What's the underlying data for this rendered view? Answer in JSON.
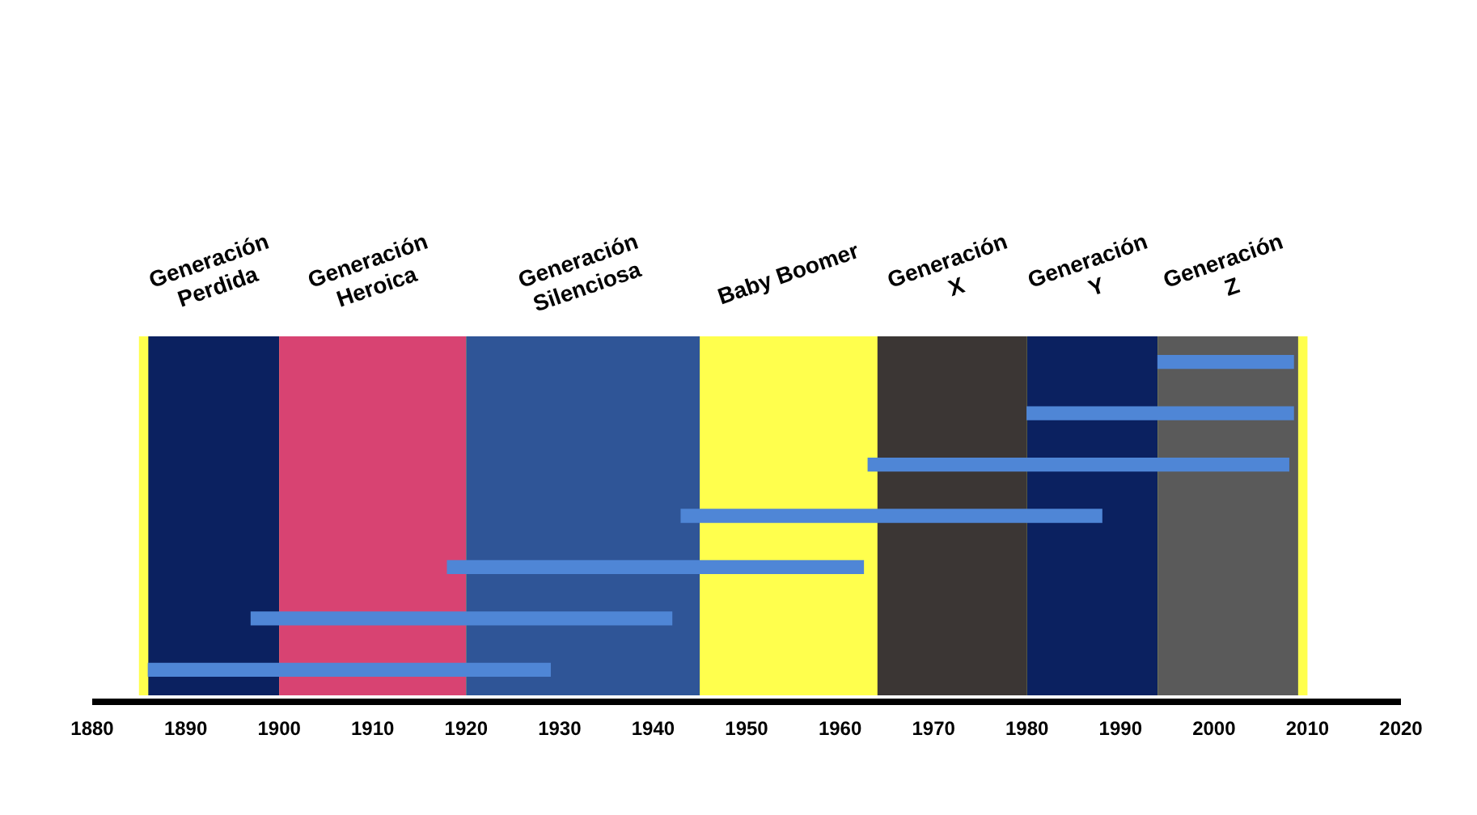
{
  "chart_data": {
    "type": "bar",
    "orientation": "horizontal",
    "categories": [
      null,
      null,
      null,
      null,
      null,
      null,
      null
    ],
    "base": [
      1994,
      1980,
      1963,
      1943,
      1918,
      1897,
      1886
    ],
    "values": [
      14.5,
      28.5,
      45,
      45,
      44.5,
      45,
      43
    ],
    "color": "#4f86d6",
    "xlim": [
      1880,
      2020
    ],
    "xticks": [
      1880,
      1890,
      1900,
      1910,
      1920,
      1930,
      1940,
      1950,
      1960,
      1970,
      1980,
      1990,
      2000,
      2010,
      2020
    ],
    "bands": [
      {
        "axis": "x",
        "from": 1885,
        "to": 2010,
        "color": "#ffff4d"
      },
      {
        "axis": "x",
        "from": 1886,
        "to": 1900,
        "label": "Generación\nPerdida",
        "color": "#0b2160"
      },
      {
        "axis": "x",
        "from": 1900,
        "to": 1920,
        "label": "Generación\nHeroica",
        "color": "#d84372"
      },
      {
        "axis": "x",
        "from": 1920,
        "to": 1945,
        "label": "Generación\nSilenciosa",
        "color": "#2f5597"
      },
      {
        "axis": "x",
        "from": 1945,
        "to": 1964,
        "label": "Baby Boomer",
        "color": "#ffff4d"
      },
      {
        "axis": "x",
        "from": 1964,
        "to": 1980,
        "label": "Generación\nX",
        "color": "#3b3634"
      },
      {
        "axis": "x",
        "from": 1980,
        "to": 1994,
        "label": "Generación\nY",
        "color": "#0b2160"
      },
      {
        "axis": "x",
        "from": 1994,
        "to": 2009,
        "label": "Generación\nZ",
        "color": "#5a5a5a"
      }
    ],
    "grid": false,
    "tick_labels": "x"
  }
}
